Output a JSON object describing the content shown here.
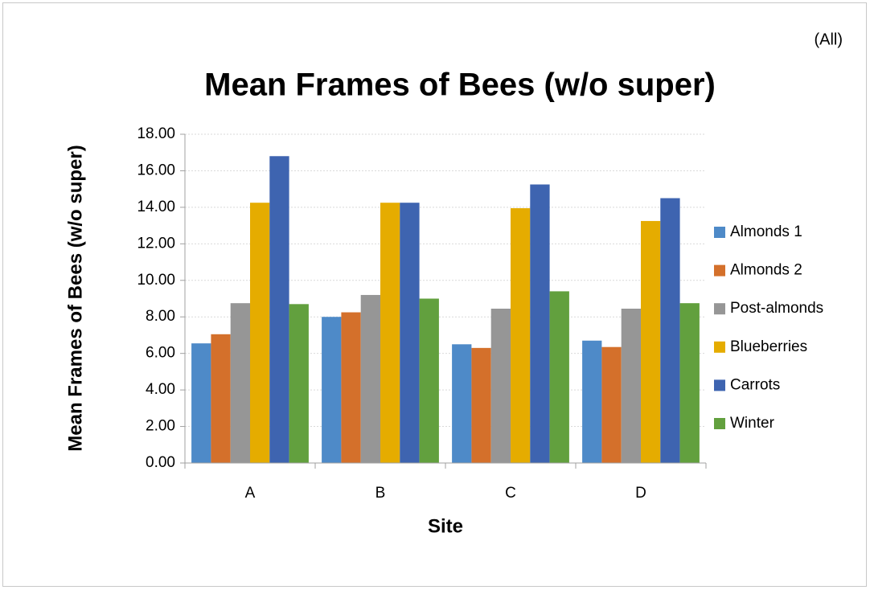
{
  "chart_data": {
    "type": "bar",
    "title": "Mean Frames of Bees (w/o super)",
    "filter_label": "(All)",
    "x_label": "Site",
    "y_label": "Mean Frames of Bees (w/o super)",
    "categories": [
      "A",
      "B",
      "C",
      "D"
    ],
    "series": [
      {
        "name": "Almonds 1",
        "color": "#4e8ac8",
        "values": [
          6.55,
          8.0,
          6.5,
          6.7
        ]
      },
      {
        "name": "Almonds 2",
        "color": "#d4702b",
        "values": [
          7.05,
          8.25,
          6.3,
          6.35
        ]
      },
      {
        "name": "Post-almonds",
        "color": "#969696",
        "values": [
          8.75,
          9.2,
          8.45,
          8.45
        ]
      },
      {
        "name": "Blueberries",
        "color": "#e5ac00",
        "values": [
          14.25,
          14.25,
          13.95,
          13.25
        ]
      },
      {
        "name": "Carrots",
        "color": "#3e64b0",
        "values": [
          16.8,
          14.25,
          15.25,
          14.5
        ]
      },
      {
        "name": "Winter",
        "color": "#62a03e",
        "values": [
          8.7,
          9.0,
          9.4,
          8.75
        ]
      }
    ],
    "ylim": [
      0,
      18
    ],
    "yticks": [
      {
        "value": 0,
        "label": "0.00"
      },
      {
        "value": 2,
        "label": "2.00"
      },
      {
        "value": 4,
        "label": "4.00"
      },
      {
        "value": 6,
        "label": "6.00"
      },
      {
        "value": 8,
        "label": "8.00"
      },
      {
        "value": 10,
        "label": "10.00"
      },
      {
        "value": 12,
        "label": "12.00"
      },
      {
        "value": 14,
        "label": "14.00"
      },
      {
        "value": 16,
        "label": "16.00"
      },
      {
        "value": 18,
        "label": "18.00"
      }
    ],
    "grid": true,
    "legend": "right"
  }
}
